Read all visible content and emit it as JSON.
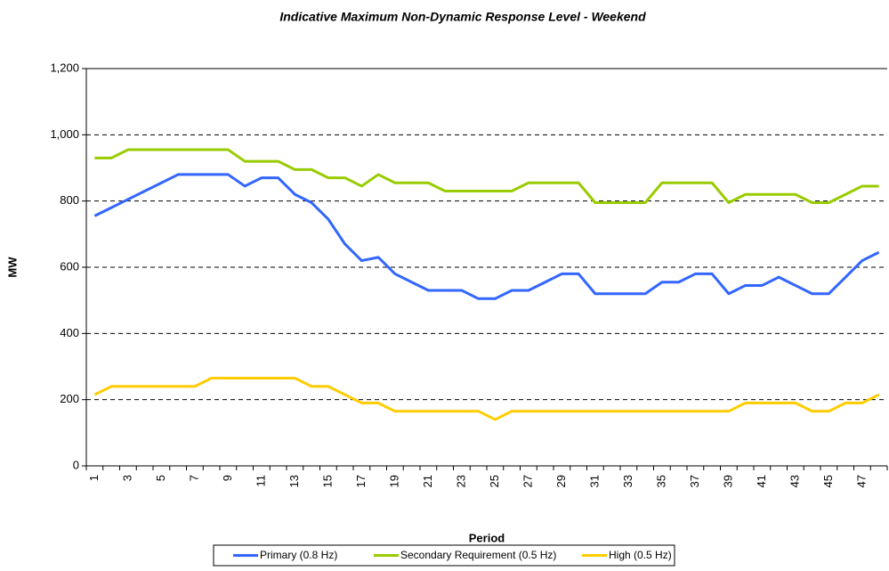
{
  "chart_data": {
    "type": "line",
    "title": "Indicative Maximum Non-Dynamic Response Level - Weekend",
    "x_label": "Period",
    "y_label": "MW",
    "categories": [
      "1",
      null,
      "3",
      null,
      "5",
      null,
      "7",
      null,
      "9",
      null,
      "11",
      null,
      "13",
      null,
      "15",
      null,
      "17",
      null,
      "19",
      null,
      "21",
      null,
      "23",
      null,
      "25",
      null,
      "27",
      null,
      "29",
      null,
      "31",
      null,
      "33",
      null,
      "35",
      null,
      "37",
      null,
      "39",
      null,
      "41",
      null,
      "43",
      null,
      "45",
      null,
      "47",
      null
    ],
    "series": [
      {
        "name": "Primary (0.8 Hz)",
        "color": "#3366ff",
        "values": [
          755,
          780,
          805,
          830,
          855,
          880,
          880,
          880,
          880,
          845,
          870,
          870,
          820,
          795,
          745,
          670,
          620,
          630,
          580,
          555,
          530,
          530,
          530,
          505,
          505,
          530,
          530,
          555,
          580,
          580,
          520,
          520,
          520,
          520,
          555,
          555,
          580,
          580,
          520,
          545,
          545,
          570,
          545,
          520,
          520,
          570,
          620,
          645
        ]
      },
      {
        "name": "Secondary Requirement (0.5 Hz)",
        "color": "#99cc00",
        "values": [
          930,
          930,
          955,
          955,
          955,
          955,
          955,
          955,
          955,
          920,
          920,
          920,
          895,
          895,
          870,
          870,
          845,
          880,
          855,
          855,
          855,
          830,
          830,
          830,
          830,
          830,
          855,
          855,
          855,
          855,
          795,
          795,
          795,
          795,
          855,
          855,
          855,
          855,
          795,
          820,
          820,
          820,
          820,
          795,
          795,
          820,
          845,
          845
        ]
      },
      {
        "name": "High (0.5 Hz)",
        "color": "#ffcc00",
        "values": [
          215,
          240,
          240,
          240,
          240,
          240,
          240,
          265,
          265,
          265,
          265,
          265,
          265,
          240,
          240,
          215,
          190,
          190,
          165,
          165,
          165,
          165,
          165,
          165,
          140,
          165,
          165,
          165,
          165,
          165,
          165,
          165,
          165,
          165,
          165,
          165,
          165,
          165,
          165,
          190,
          190,
          190,
          190,
          165,
          165,
          190,
          190,
          215
        ]
      }
    ],
    "ylim": [
      0,
      1200
    ],
    "yticks": [
      0,
      200,
      400,
      600,
      800,
      {
        "value": 1000,
        "label": "1,000"
      },
      {
        "value": 1200,
        "label": "1,200"
      }
    ],
    "grid": true,
    "legend": "bottom"
  }
}
